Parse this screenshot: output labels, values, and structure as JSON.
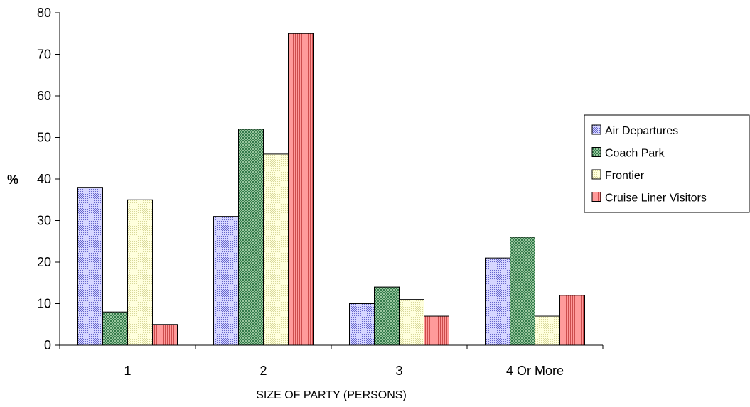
{
  "chart_data": {
    "type": "bar",
    "title": "",
    "xlabel": "SIZE OF PARTY (PERSONS)",
    "ylabel": "%",
    "ylim": [
      0,
      80
    ],
    "yticks": [
      0,
      10,
      20,
      30,
      40,
      50,
      60,
      70,
      80
    ],
    "categories": [
      "1",
      "2",
      "3",
      "4 Or More"
    ],
    "grid": false,
    "legend_position": "right",
    "series": [
      {
        "name": "Air Departures",
        "color": "#9999ff",
        "values": [
          38,
          31,
          10,
          21
        ]
      },
      {
        "name": "Coach Park",
        "color": "#339966",
        "values": [
          8,
          52,
          14,
          26
        ]
      },
      {
        "name": "Frontier",
        "color": "#ffffcc",
        "values": [
          35,
          46,
          11,
          7
        ]
      },
      {
        "name": "Cruise Liner Visitors",
        "color": "#ff8080",
        "values": [
          5,
          75,
          7,
          12
        ]
      }
    ]
  }
}
